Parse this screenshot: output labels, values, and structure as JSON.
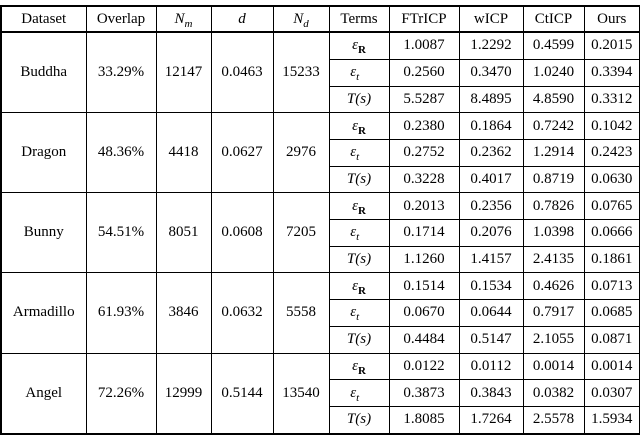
{
  "table": {
    "headers": [
      {
        "base": "Dataset",
        "sub": ""
      },
      {
        "base": "Overlap",
        "sub": ""
      },
      {
        "base": "N",
        "sub": "m"
      },
      {
        "base": "d",
        "sub": ""
      },
      {
        "base": "N",
        "sub": "d"
      },
      {
        "base": "Terms",
        "sub": ""
      },
      {
        "base": "FTrICP",
        "sub": ""
      },
      {
        "base": "wICP",
        "sub": ""
      },
      {
        "base": "CtICP",
        "sub": ""
      },
      {
        "base": "Ours",
        "sub": ""
      }
    ],
    "terms": [
      {
        "base": "ε",
        "sub": "R"
      },
      {
        "base": "ε",
        "sub": "t⃗"
      },
      {
        "base": "T(s)",
        "sub": ""
      }
    ],
    "rows": [
      {
        "dataset": "Buddha",
        "overlap": "33.29%",
        "nm": "12147",
        "d": "0.0463",
        "nd": "15233",
        "values": [
          [
            "1.0087",
            "1.2292",
            "0.4599",
            "0.2015"
          ],
          [
            "0.2560",
            "0.3470",
            "1.0240",
            "0.3394"
          ],
          [
            "5.5287",
            "8.4895",
            "4.8590",
            "0.3312"
          ]
        ]
      },
      {
        "dataset": "Dragon",
        "overlap": "48.36%",
        "nm": "4418",
        "d": "0.0627",
        "nd": "2976",
        "values": [
          [
            "0.2380",
            "0.1864",
            "0.7242",
            "0.1042"
          ],
          [
            "0.2752",
            "0.2362",
            "1.2914",
            "0.2423"
          ],
          [
            "0.3228",
            "0.4017",
            "0.8719",
            "0.0630"
          ]
        ]
      },
      {
        "dataset": "Bunny",
        "overlap": "54.51%",
        "nm": "8051",
        "d": "0.0608",
        "nd": "7205",
        "values": [
          [
            "0.2013",
            "0.2356",
            "0.7826",
            "0.0765"
          ],
          [
            "0.1714",
            "0.2076",
            "1.0398",
            "0.0666"
          ],
          [
            "1.1260",
            "1.4157",
            "2.4135",
            "0.1861"
          ]
        ]
      },
      {
        "dataset": "Armadillo",
        "overlap": "61.93%",
        "nm": "3846",
        "d": "0.0632",
        "nd": "5558",
        "values": [
          [
            "0.1514",
            "0.1534",
            "0.4626",
            "0.0713"
          ],
          [
            "0.0670",
            "0.0644",
            "0.7917",
            "0.0685"
          ],
          [
            "0.4484",
            "0.5147",
            "2.1055",
            "0.0871"
          ]
        ]
      },
      {
        "dataset": "Angel",
        "overlap": "72.26%",
        "nm": "12999",
        "d": "0.5144",
        "nd": "13540",
        "values": [
          [
            "0.0122",
            "0.0112",
            "0.0014",
            "0.0014"
          ],
          [
            "0.3873",
            "0.3843",
            "0.0382",
            "0.0307"
          ],
          [
            "1.8085",
            "1.7264",
            "2.5578",
            "1.5934"
          ]
        ]
      }
    ]
  }
}
